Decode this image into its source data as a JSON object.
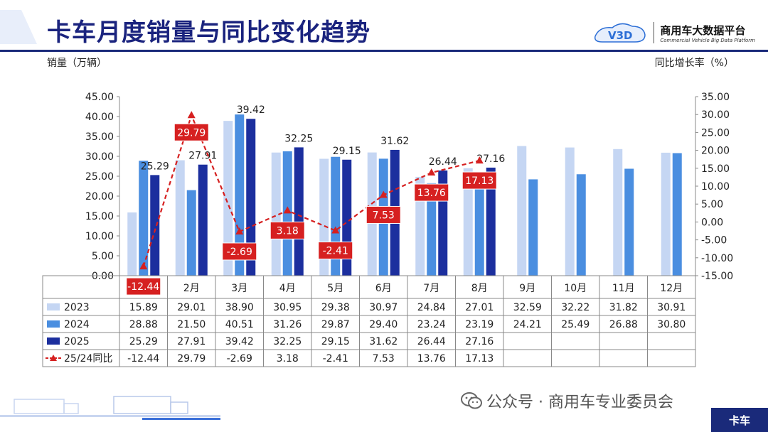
{
  "header": {
    "title": "卡车月度销量与同比变化趋势",
    "logo_cn": "商用车大数据平台",
    "logo_en": "Commercial Vehicle Big Data Platform",
    "logo_mark": "V3D"
  },
  "axis_labels": {
    "left": "销量（万辆）",
    "right": "同比增长率（%）"
  },
  "footer": {
    "watermark": "公众号 · 商用车专业委员会",
    "tag": "卡车"
  },
  "colors": {
    "s2023": "#c5d6f3",
    "s2024": "#4a8ee0",
    "s2025": "#1c2f9e",
    "yoy": "#d62020",
    "title": "#1a237e"
  },
  "chart_data": {
    "type": "bar",
    "categories": [
      "1月",
      "2月",
      "3月",
      "4月",
      "5月",
      "6月",
      "7月",
      "8月",
      "9月",
      "10月",
      "11月",
      "12月"
    ],
    "series": [
      {
        "name": "2023",
        "values": [
          15.89,
          29.01,
          38.9,
          30.95,
          29.38,
          30.97,
          24.84,
          27.01,
          32.59,
          32.22,
          31.82,
          30.91
        ]
      },
      {
        "name": "2024",
        "values": [
          28.88,
          21.5,
          40.51,
          31.26,
          29.87,
          29.4,
          23.24,
          23.19,
          24.21,
          25.49,
          26.88,
          30.8
        ]
      },
      {
        "name": "2025",
        "values": [
          25.29,
          27.91,
          39.42,
          32.25,
          29.15,
          31.62,
          26.44,
          27.16,
          null,
          null,
          null,
          null
        ]
      }
    ],
    "line_series": {
      "name": "25/24同比",
      "values": [
        -12.44,
        29.79,
        -2.69,
        3.18,
        -2.41,
        7.53,
        13.76,
        17.13
      ]
    },
    "bar_labels_2025": [
      "25.29",
      "27.91",
      "39.42",
      "32.25",
      "29.15",
      "31.62",
      "26.44",
      "27.16"
    ],
    "yoy_labels": [
      "-12.44",
      "29.79",
      "-2.69",
      "3.18",
      "-2.41",
      "7.53",
      "13.76",
      "17.13"
    ],
    "left_ticks": [
      "0.00",
      "5.00",
      "10.00",
      "15.00",
      "20.00",
      "25.00",
      "30.00",
      "35.00",
      "40.00",
      "45.00"
    ],
    "right_ticks": [
      "-15.00",
      "-10.00",
      "-5.00",
      "0.00",
      "5.00",
      "10.00",
      "15.00",
      "20.00",
      "25.00",
      "30.00",
      "35.00"
    ],
    "ylim_left": [
      0,
      45
    ],
    "ylim_right": [
      -15,
      35
    ],
    "table": {
      "rows": [
        {
          "label": "2023",
          "cells": [
            "15.89",
            "29.01",
            "38.90",
            "30.95",
            "29.38",
            "30.97",
            "24.84",
            "27.01",
            "32.59",
            "32.22",
            "31.82",
            "30.91"
          ]
        },
        {
          "label": "2024",
          "cells": [
            "28.88",
            "21.50",
            "40.51",
            "31.26",
            "29.87",
            "29.40",
            "23.24",
            "23.19",
            "24.21",
            "25.49",
            "26.88",
            "30.80"
          ]
        },
        {
          "label": "2025",
          "cells": [
            "25.29",
            "27.91",
            "39.42",
            "32.25",
            "29.15",
            "31.62",
            "26.44",
            "27.16",
            "",
            "",
            "",
            ""
          ]
        },
        {
          "label": "25/24同比",
          "cells": [
            "-12.44",
            "29.79",
            "-2.69",
            "3.18",
            "-2.41",
            "7.53",
            "13.76",
            "17.13",
            "",
            "",
            "",
            ""
          ]
        }
      ]
    }
  }
}
